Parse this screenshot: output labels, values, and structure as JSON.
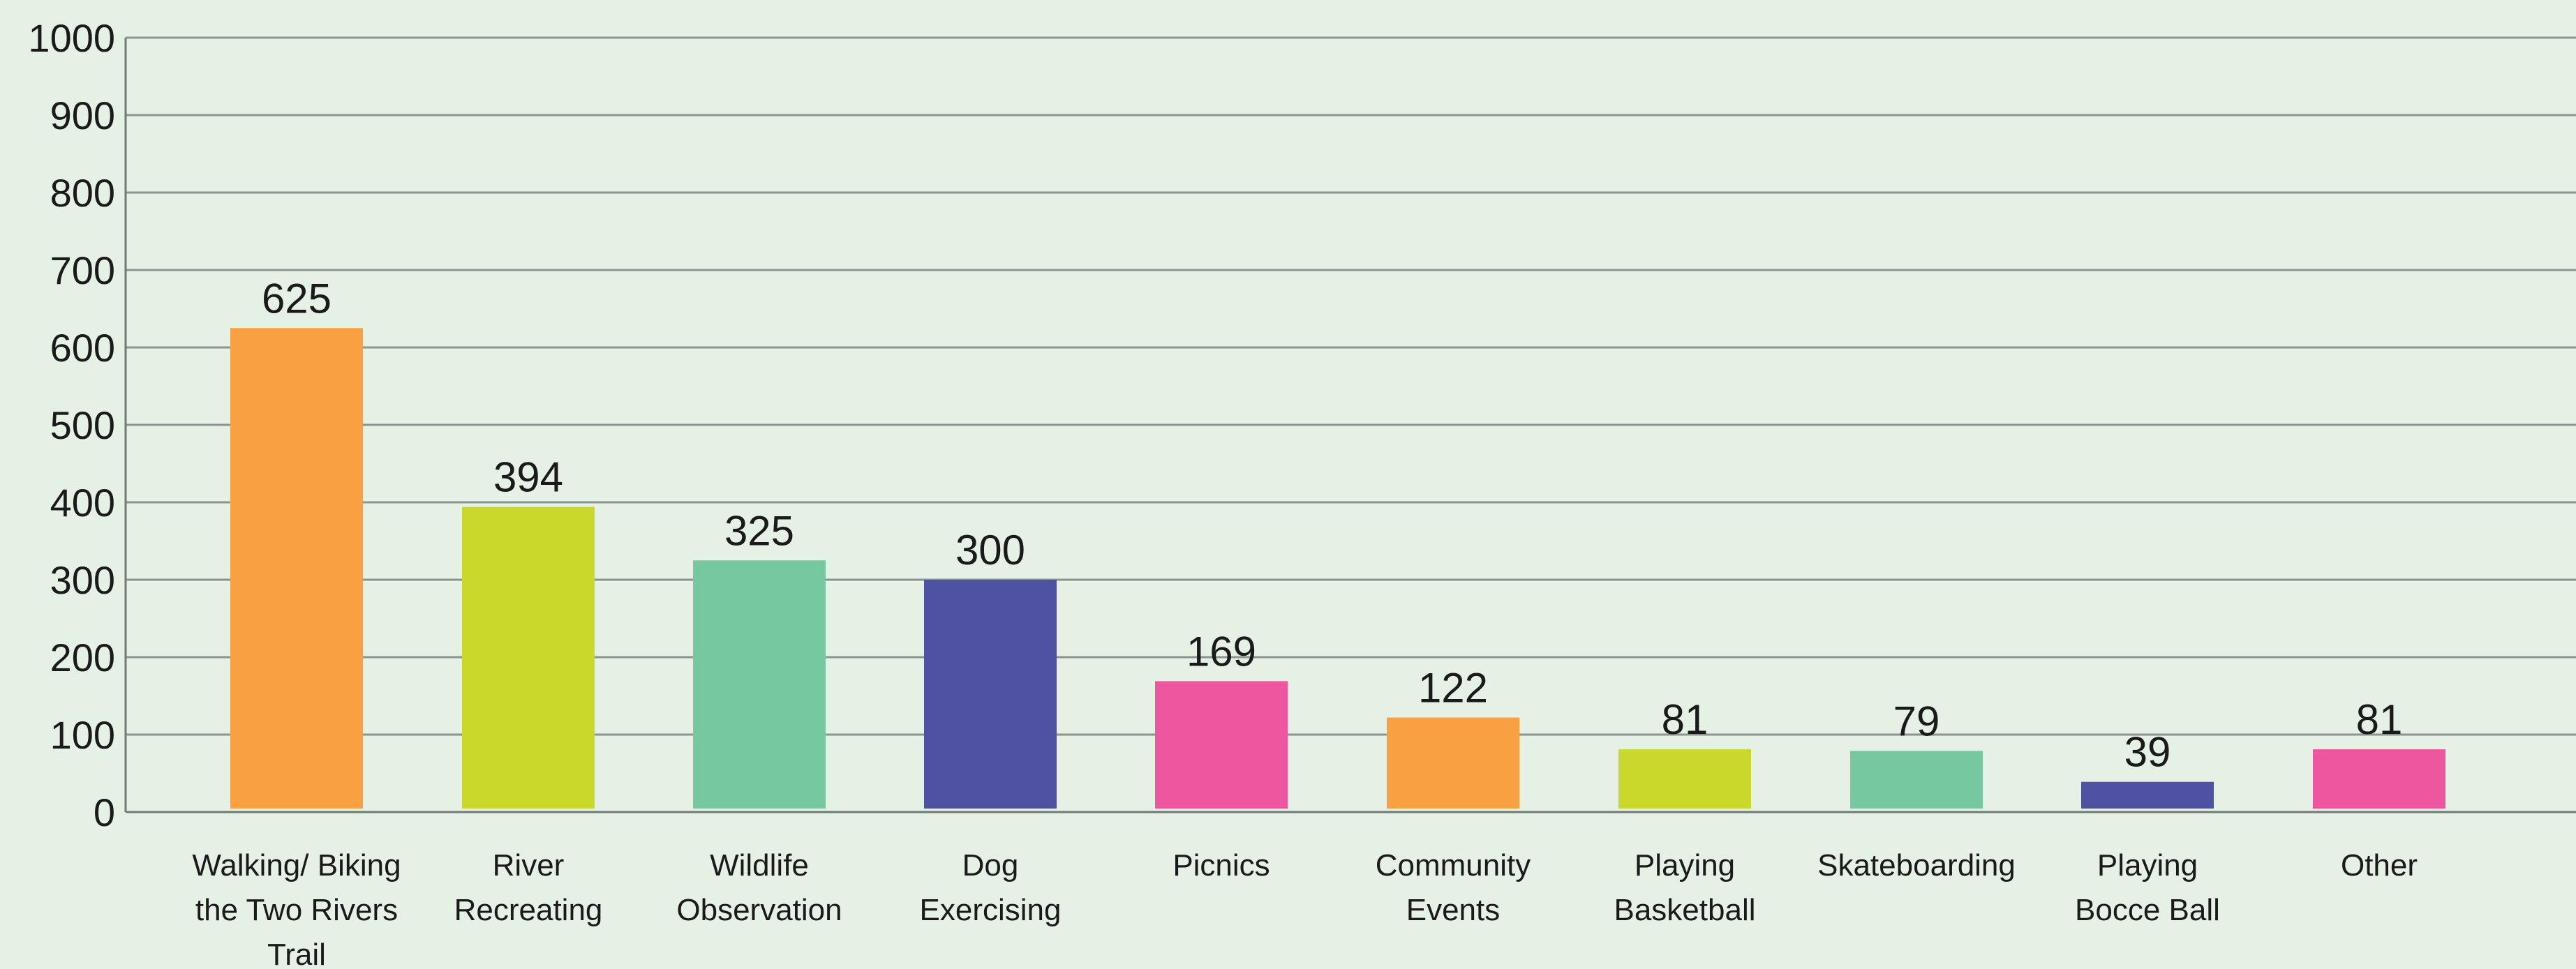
{
  "chart_data": {
    "type": "bar",
    "categories": [
      "Walking/ Biking the Two Rivers Trail",
      "River Recreating",
      "Wildlife Observation",
      "Dog Exercising",
      "Picnics",
      "Community Events",
      "Playing Basketball",
      "Skateboarding",
      "Playing Bocce Ball",
      "Other"
    ],
    "category_lines": [
      [
        "Walking/ Biking",
        "the Two Rivers",
        "Trail"
      ],
      [
        "River",
        "Recreating"
      ],
      [
        "Wildlife",
        "Observation"
      ],
      [
        "Dog",
        "Exercising"
      ],
      [
        "Picnics"
      ],
      [
        "Community",
        "Events"
      ],
      [
        "Playing",
        "Basketball"
      ],
      [
        "Skateboarding"
      ],
      [
        "Playing",
        "Bocce Ball"
      ],
      [
        "Other"
      ]
    ],
    "values": [
      625,
      394,
      325,
      300,
      169,
      122,
      81,
      79,
      39,
      81
    ],
    "value_labels": [
      "625",
      "394",
      "325",
      "300",
      "169",
      "122",
      "81",
      "79",
      "39",
      "81"
    ],
    "bar_colors": [
      "#f8a042",
      "#c9d82a",
      "#76c8a0",
      "#4f52a0",
      "#ef56a0",
      "#f8a042",
      "#c9d82a",
      "#76c8a0",
      "#4f52a0",
      "#ef56a0"
    ],
    "ylim": [
      0,
      1000
    ],
    "yticks": [
      0,
      100,
      200,
      300,
      400,
      500,
      600,
      700,
      800,
      900,
      1000
    ],
    "ytick_labels": [
      "0",
      "100",
      "200",
      "300",
      "400",
      "500",
      "600",
      "700",
      "800",
      "900",
      "1000"
    ],
    "grid": true,
    "legend": "none",
    "title": "",
    "xlabel": "",
    "ylabel": ""
  },
  "colors": {
    "background": "#e6f1e6",
    "grid": "#8a9590",
    "axis": "#6f7a74",
    "text": "#1a1a1a"
  }
}
